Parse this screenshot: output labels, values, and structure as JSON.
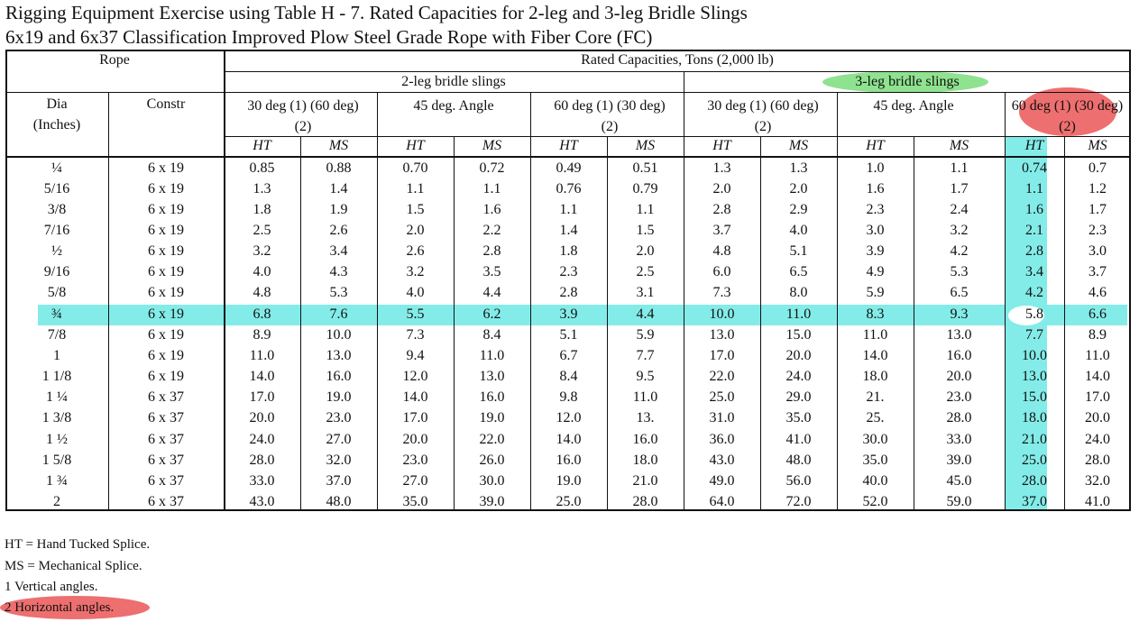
{
  "title_line1": "Rigging Equipment Exercise using Table H - 7. Rated Capacities for 2-leg and 3-leg Bridle Slings",
  "title_line2": "6x19 and 6x37 Classification Improved Plow Steel Grade Rope with Fiber Core (FC)",
  "header": {
    "rope": "Rope",
    "rated": "Rated Capacities, Tons (2,000 lb)",
    "two_leg": "2-leg bridle slings",
    "three_leg": "3-leg bridle slings",
    "dia": "Dia",
    "inches": "(Inches)",
    "constr": "Constr",
    "angle_30": "30 deg (1) (60 deg) (2)",
    "angle_45": "45 deg. Angle",
    "angle_60": "60 deg (1) (30 deg) (2)",
    "ht": "HT",
    "ms": "MS"
  },
  "rows": [
    [
      "¼",
      "6 x 19",
      "0.85",
      "0.88",
      "0.70",
      "0.72",
      "0.49",
      "0.51",
      "1.3",
      "1.3",
      "1.0",
      "1.1",
      "0.74",
      "0.7"
    ],
    [
      "5/16",
      "6 x 19",
      "1.3",
      "1.4",
      "1.1",
      "1.1",
      "0.76",
      "0.79",
      "2.0",
      "2.0",
      "1.6",
      "1.7",
      "1.1",
      "1.2"
    ],
    [
      "3/8",
      "6 x 19",
      "1.8",
      "1.9",
      "1.5",
      "1.6",
      "1.1",
      "1.1",
      "2.8",
      "2.9",
      "2.3",
      "2.4",
      "1.6",
      "1.7"
    ],
    [
      "7/16",
      "6 x 19",
      "2.5",
      "2.6",
      "2.0",
      "2.2",
      "1.4",
      "1.5",
      "3.7",
      "4.0",
      "3.0",
      "3.2",
      "2.1",
      "2.3"
    ],
    [
      "½",
      "6 x 19",
      "3.2",
      "3.4",
      "2.6",
      "2.8",
      "1.8",
      "2.0",
      "4.8",
      "5.1",
      "3.9",
      "4.2",
      "2.8",
      "3.0"
    ],
    [
      "9/16",
      "6 x 19",
      "4.0",
      "4.3",
      "3.2",
      "3.5",
      "2.3",
      "2.5",
      "6.0",
      "6.5",
      "4.9",
      "5.3",
      "3.4",
      "3.7"
    ],
    [
      "5/8",
      "6 x 19",
      "4.8",
      "5.3",
      "4.0",
      "4.4",
      "2.8",
      "3.1",
      "7.3",
      "8.0",
      "5.9",
      "6.5",
      "4.2",
      "4.6"
    ],
    [
      "¾",
      "6 x 19",
      "6.8",
      "7.6",
      "5.5",
      "6.2",
      "3.9",
      "4.4",
      "10.0",
      "11.0",
      "8.3",
      "9.3",
      "5.8",
      "6.6"
    ],
    [
      "7/8",
      "6 x 19",
      "8.9",
      "10.0",
      "7.3",
      "8.4",
      "5.1",
      "5.9",
      "13.0",
      "15.0",
      "11.0",
      "13.0",
      "7.7",
      "8.9"
    ],
    [
      "1",
      "6 x 19",
      "11.0",
      "13.0",
      "9.4",
      "11.0",
      "6.7",
      "7.7",
      "17.0",
      "20.0",
      "14.0",
      "16.0",
      "10.0",
      "11.0"
    ],
    [
      "1 1/8",
      "6 x 19",
      "14.0",
      "16.0",
      "12.0",
      "13.0",
      "8.4",
      "9.5",
      "22.0",
      "24.0",
      "18.0",
      "20.0",
      "13.0",
      "14.0"
    ],
    [
      "1 ¼",
      "6 x 37",
      "17.0",
      "19.0",
      "14.0",
      "16.0",
      "9.8",
      "11.0",
      "25.0",
      "29.0",
      "21.",
      "23.0",
      "15.0",
      "17.0"
    ],
    [
      "1 3/8",
      "6 x 37",
      "20.0",
      "23.0",
      "17.0",
      "19.0",
      "12.0",
      "13.",
      "31.0",
      "35.0",
      "25.",
      "28.0",
      "18.0",
      "20.0"
    ],
    [
      "1 ½",
      "6 x 37",
      "24.0",
      "27.0",
      "20.0",
      "22.0",
      "14.0",
      "16.0",
      "36.0",
      "41.0",
      "30.0",
      "33.0",
      "21.0",
      "24.0"
    ],
    [
      "1 5/8",
      "6 x 37",
      "28.0",
      "32.0",
      "23.0",
      "26.0",
      "16.0",
      "18.0",
      "43.0",
      "48.0",
      "35.0",
      "39.0",
      "25.0",
      "28.0"
    ],
    [
      "1 ¾",
      "6 x 37",
      "33.0",
      "37.0",
      "27.0",
      "30.0",
      "19.0",
      "21.0",
      "49.0",
      "56.0",
      "40.0",
      "45.0",
      "28.0",
      "32.0"
    ],
    [
      "2",
      "6 x 37",
      "43.0",
      "48.0",
      "35.0",
      "39.0",
      "25.0",
      "28.0",
      "64.0",
      "72.0",
      "52.0",
      "59.0",
      "37.0",
      "41.0"
    ]
  ],
  "footnotes": [
    "HT = Hand Tucked Splice.",
    "MS = Mechanical Splice.",
    "1 Vertical angles.",
    "2 Horizontal angles."
  ],
  "colors": {
    "highlight_cyan": "#83ece8",
    "annotation_green": "#8fe28f",
    "annotation_red": "#ee6f6f"
  }
}
